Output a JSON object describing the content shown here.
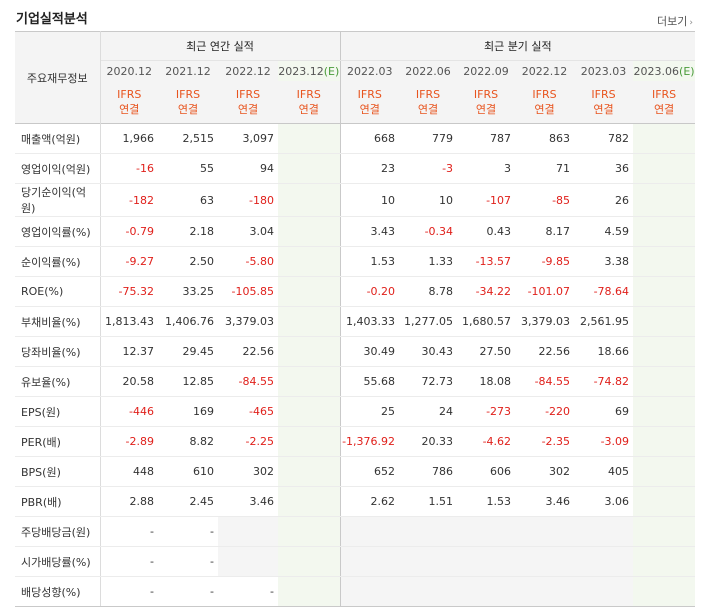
{
  "header": {
    "title": "기업실적분석",
    "more_label": "더보기"
  },
  "table": {
    "row_header": "주요재무정보",
    "groups": {
      "annual": "최근 연간 실적",
      "quarterly": "최근 분기 실적"
    },
    "annual_periods": [
      "2020.12",
      "2021.12",
      "2022.12",
      "2023.12(E)"
    ],
    "quarter_periods": [
      "2022.03",
      "2022.06",
      "2022.09",
      "2022.12",
      "2023.03",
      "2023.06(E)"
    ],
    "ifrs_top": "IFRS",
    "ifrs_bottom": "연결",
    "rows": [
      {
        "label": "매출액(억원)",
        "values": [
          "1,966",
          "2,515",
          "3,097",
          "",
          "668",
          "779",
          "787",
          "863",
          "782",
          ""
        ]
      },
      {
        "label": "영업이익(억원)",
        "values": [
          "-16",
          "55",
          "94",
          "",
          "23",
          "-3",
          "3",
          "71",
          "36",
          ""
        ]
      },
      {
        "label": "당기순이익(억원)",
        "values": [
          "-182",
          "63",
          "-180",
          "",
          "10",
          "10",
          "-107",
          "-85",
          "26",
          ""
        ]
      },
      {
        "label": "영업이익률(%)",
        "values": [
          "-0.79",
          "2.18",
          "3.04",
          "",
          "3.43",
          "-0.34",
          "0.43",
          "8.17",
          "4.59",
          ""
        ]
      },
      {
        "label": "순이익률(%)",
        "values": [
          "-9.27",
          "2.50",
          "-5.80",
          "",
          "1.53",
          "1.33",
          "-13.57",
          "-9.85",
          "3.38",
          ""
        ]
      },
      {
        "label": "ROE(%)",
        "values": [
          "-75.32",
          "33.25",
          "-105.85",
          "",
          "-0.20",
          "8.78",
          "-34.22",
          "-101.07",
          "-78.64",
          ""
        ]
      },
      {
        "label": "부채비율(%)",
        "values": [
          "1,813.43",
          "1,406.76",
          "3,379.03",
          "",
          "1,403.33",
          "1,277.05",
          "1,680.57",
          "3,379.03",
          "2,561.95",
          ""
        ]
      },
      {
        "label": "당좌비율(%)",
        "values": [
          "12.37",
          "29.45",
          "22.56",
          "",
          "30.49",
          "30.43",
          "27.50",
          "22.56",
          "18.66",
          ""
        ]
      },
      {
        "label": "유보율(%)",
        "values": [
          "20.58",
          "12.85",
          "-84.55",
          "",
          "55.68",
          "72.73",
          "18.08",
          "-84.55",
          "-74.82",
          ""
        ]
      },
      {
        "label": "EPS(원)",
        "values": [
          "-446",
          "169",
          "-465",
          "",
          "25",
          "24",
          "-273",
          "-220",
          "69",
          ""
        ]
      },
      {
        "label": "PER(배)",
        "values": [
          "-2.89",
          "8.82",
          "-2.25",
          "",
          "-1,376.92",
          "20.33",
          "-4.62",
          "-2.35",
          "-3.09",
          ""
        ]
      },
      {
        "label": "BPS(원)",
        "values": [
          "448",
          "610",
          "302",
          "",
          "652",
          "786",
          "606",
          "302",
          "405",
          ""
        ]
      },
      {
        "label": "PBR(배)",
        "values": [
          "2.88",
          "2.45",
          "3.46",
          "",
          "2.62",
          "1.51",
          "1.53",
          "3.46",
          "3.06",
          ""
        ]
      },
      {
        "label": "주당배당금(원)",
        "values": [
          "-",
          "-",
          "",
          "",
          "",
          "",
          "",
          "",
          "",
          ""
        ]
      },
      {
        "label": "시가배당률(%)",
        "values": [
          "-",
          "-",
          "",
          "",
          "",
          "",
          "",
          "",
          "",
          ""
        ]
      },
      {
        "label": "배당성향(%)",
        "values": [
          "-",
          "-",
          "-",
          "",
          "",
          "",
          "",
          "",
          "",
          ""
        ]
      }
    ]
  },
  "colors": {
    "negative": "#e0201b",
    "ifrs": "#e8541e",
    "estimate_bg": "#f3f8ef",
    "estimate_mark": "#4a9c3a"
  }
}
